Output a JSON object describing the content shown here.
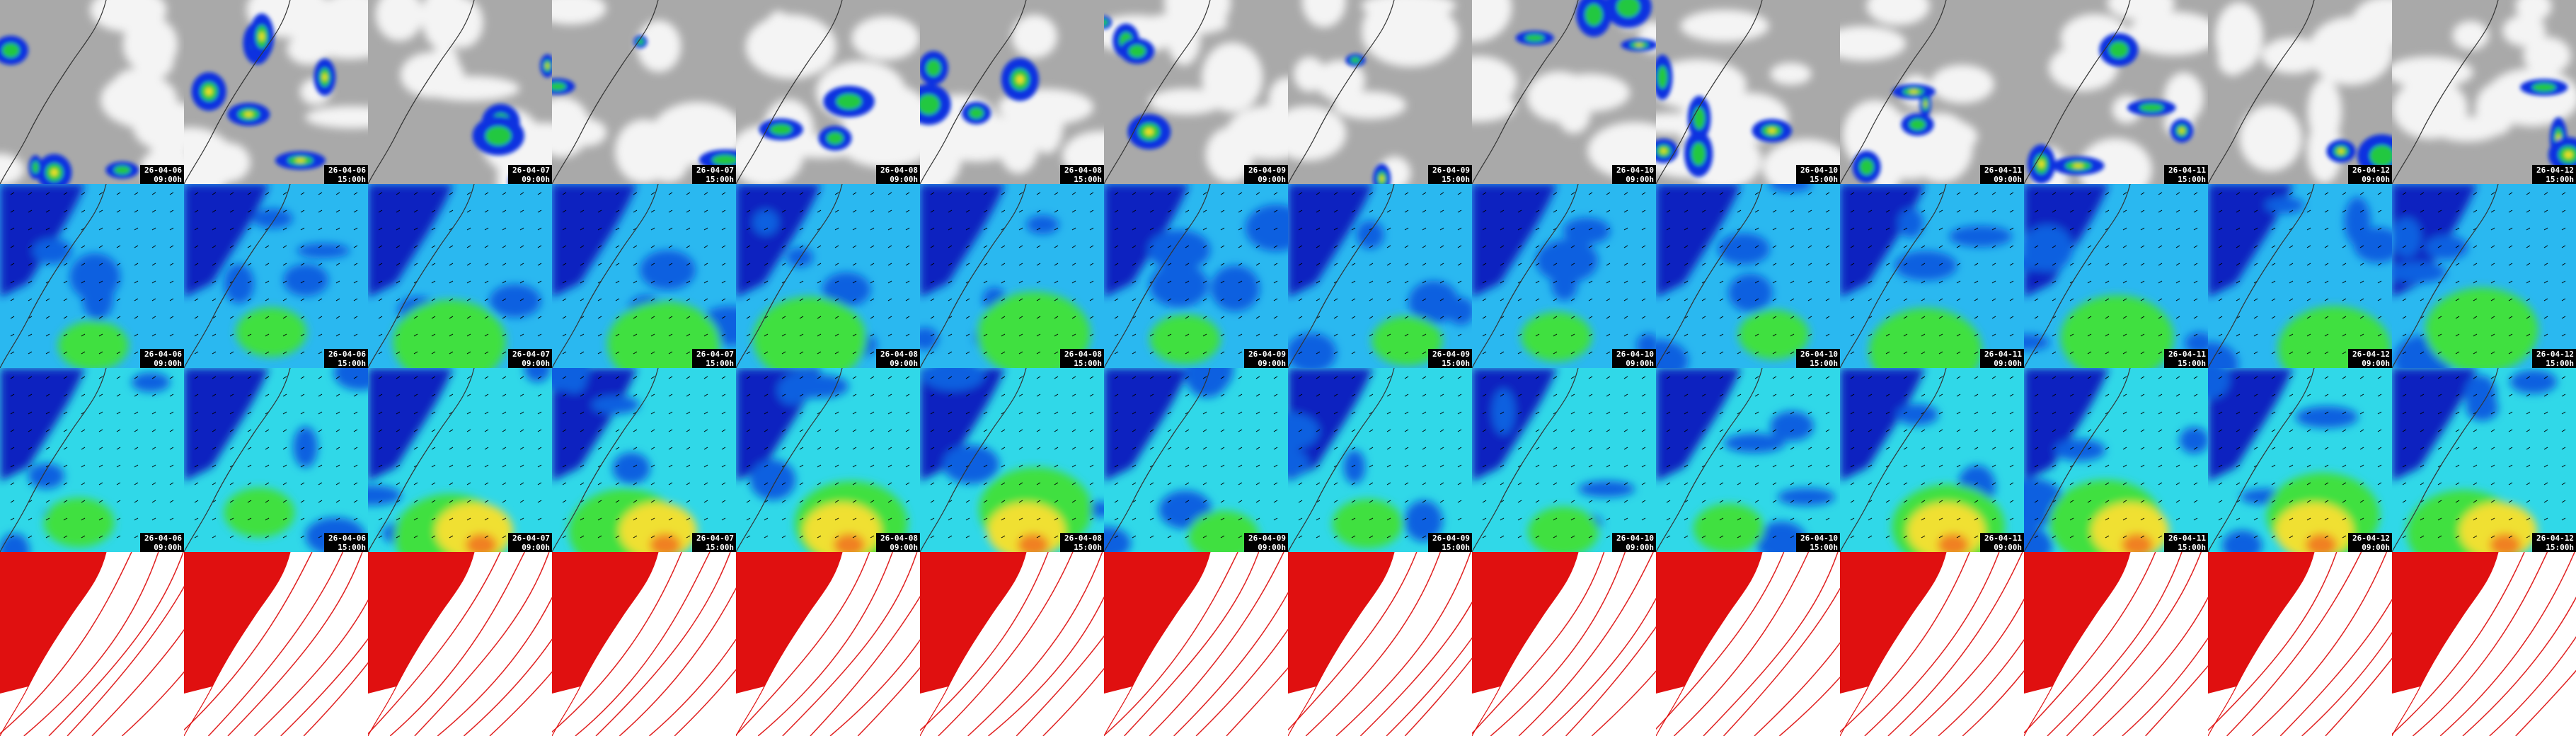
{
  "columns": [
    {
      "date": "26-04-06",
      "time": "09:00h"
    },
    {
      "date": "26-04-06",
      "time": "15:00h"
    },
    {
      "date": "26-04-07",
      "time": "09:00h"
    },
    {
      "date": "26-04-07",
      "time": "15:00h"
    },
    {
      "date": "26-04-08",
      "time": "09:00h"
    },
    {
      "date": "26-04-08",
      "time": "15:00h"
    },
    {
      "date": "26-04-09",
      "time": "09:00h"
    },
    {
      "date": "26-04-09",
      "time": "15:00h"
    },
    {
      "date": "26-04-10",
      "time": "09:00h"
    },
    {
      "date": "26-04-10",
      "time": "15:00h"
    },
    {
      "date": "26-04-11",
      "time": "09:00h"
    },
    {
      "date": "26-04-11",
      "time": "15:00h"
    },
    {
      "date": "26-04-12",
      "time": "09:00h"
    },
    {
      "date": "26-04-12",
      "time": "15:00h"
    }
  ]
}
